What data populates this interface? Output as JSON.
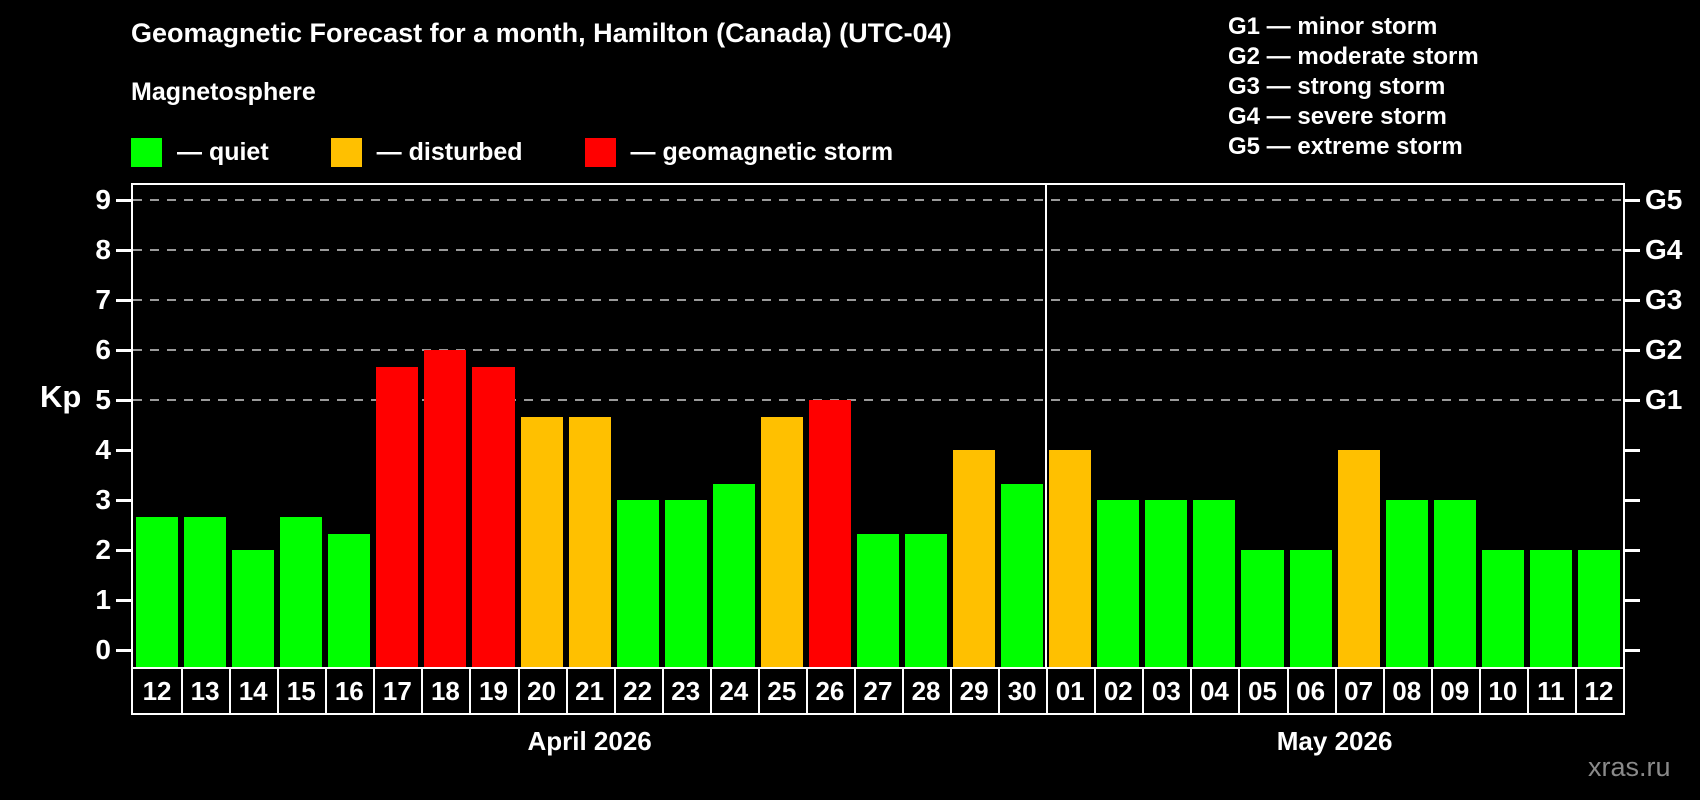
{
  "title": "Geomagnetic Forecast for a month, Hamilton (Canada) (UTC-04)",
  "subtitle": "Magnetosphere",
  "watermark": "xras.ru",
  "legend": {
    "items": [
      {
        "key": "quiet",
        "label": "— quiet"
      },
      {
        "key": "disturbed",
        "label": "— disturbed"
      },
      {
        "key": "storm",
        "label": "— geomagnetic storm"
      }
    ]
  },
  "g_legend": {
    "items": [
      "G1 — minor storm",
      "G2 — moderate storm",
      "G3 — strong storm",
      "G4 — severe storm",
      "G5 — extreme storm"
    ]
  },
  "chart_data": {
    "type": "bar",
    "ylabel": "Kp",
    "ylim": [
      0,
      9
    ],
    "yticks": [
      0,
      1,
      2,
      3,
      4,
      5,
      6,
      7,
      8,
      9
    ],
    "gridlines_at": [
      5,
      6,
      7,
      8,
      9
    ],
    "right_axis": [
      {
        "kp": 5,
        "label": "G1"
      },
      {
        "kp": 6,
        "label": "G2"
      },
      {
        "kp": 7,
        "label": "G3"
      },
      {
        "kp": 8,
        "label": "G4"
      },
      {
        "kp": 9,
        "label": "G5"
      }
    ],
    "palette": {
      "quiet": "#00ff00",
      "disturbed": "#ffc000",
      "storm": "#ff0000"
    },
    "grid_color": "#9a9a9a",
    "months": [
      {
        "label": "April 2026",
        "days": 19
      },
      {
        "label": "May 2026",
        "days": 12
      }
    ],
    "categories": [
      "12",
      "13",
      "14",
      "15",
      "16",
      "17",
      "18",
      "19",
      "20",
      "21",
      "22",
      "23",
      "24",
      "25",
      "26",
      "27",
      "28",
      "29",
      "30",
      "01",
      "02",
      "03",
      "04",
      "05",
      "06",
      "07",
      "08",
      "09",
      "10",
      "11",
      "12"
    ],
    "values": [
      2.67,
      2.67,
      2.0,
      2.67,
      2.33,
      5.67,
      6.0,
      5.67,
      4.67,
      4.67,
      3.0,
      3.0,
      3.33,
      4.67,
      5.0,
      2.33,
      2.33,
      4.0,
      3.33,
      4.0,
      3.0,
      3.0,
      3.0,
      2.0,
      2.0,
      4.0,
      3.0,
      3.0,
      2.0,
      2.0,
      2.0
    ],
    "statuses": [
      "quiet",
      "quiet",
      "quiet",
      "quiet",
      "quiet",
      "storm",
      "storm",
      "storm",
      "disturbed",
      "disturbed",
      "quiet",
      "quiet",
      "quiet",
      "disturbed",
      "storm",
      "quiet",
      "quiet",
      "disturbed",
      "quiet",
      "disturbed",
      "quiet",
      "quiet",
      "quiet",
      "quiet",
      "quiet",
      "disturbed",
      "quiet",
      "quiet",
      "quiet",
      "quiet",
      "quiet"
    ]
  }
}
